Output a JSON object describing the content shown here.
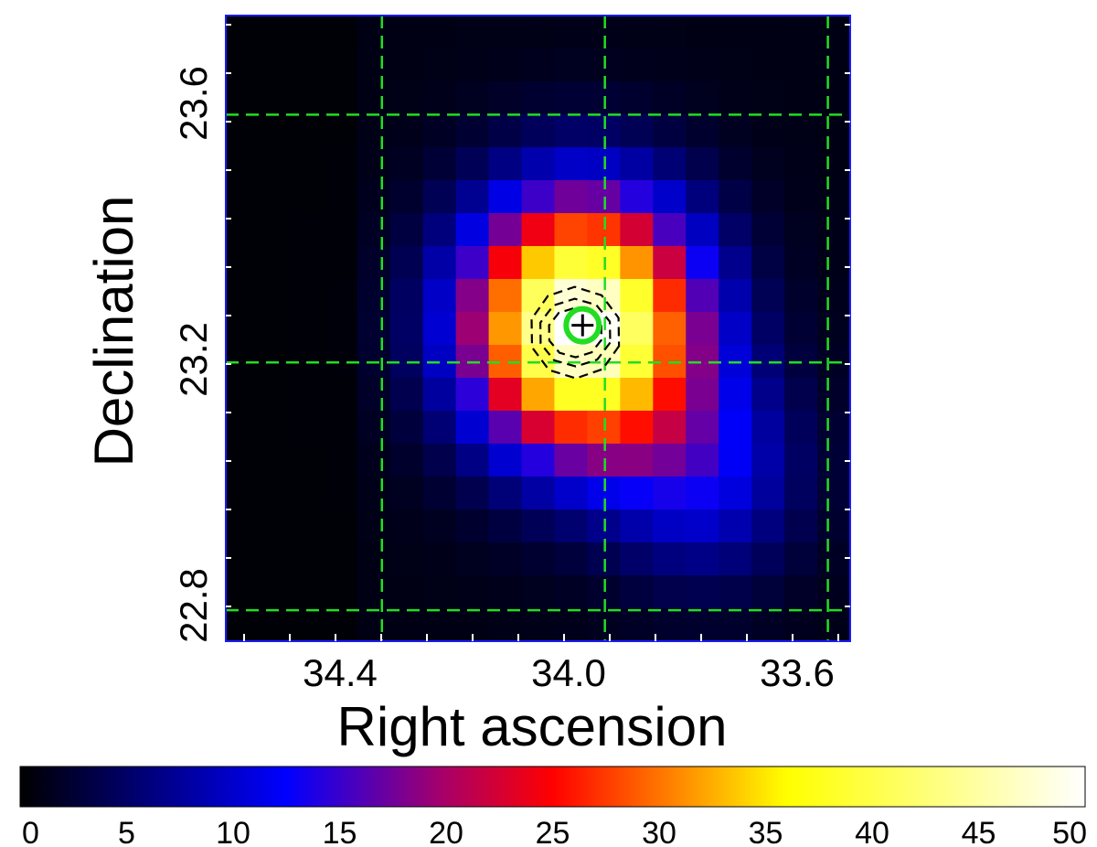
{
  "chart_data": {
    "type": "heatmap",
    "xlabel": "Right ascension",
    "ylabel": "Declination",
    "x_ticks": [
      {
        "value": 34.4,
        "label": "34.4"
      },
      {
        "value": 34.0,
        "label": "34.0"
      },
      {
        "value": 33.6,
        "label": "33.6"
      }
    ],
    "y_ticks": [
      {
        "value": 23.6,
        "label": "23.6"
      },
      {
        "value": 23.2,
        "label": "23.2"
      },
      {
        "value": 22.8,
        "label": "22.8"
      }
    ],
    "xlim": [
      34.68,
      33.56
    ],
    "ylim": [
      22.77,
      23.78
    ],
    "grid": {
      "style": "dashed",
      "color": "#22dd22",
      "ra_lines": [
        34.4,
        34.0,
        33.6
      ],
      "dec_lines": [
        23.62,
        23.22,
        22.82
      ]
    },
    "colorbar": {
      "min": 0,
      "max": 50,
      "ticks": [
        0,
        5,
        10,
        15,
        20,
        25,
        30,
        35,
        40,
        45,
        50
      ],
      "orientation": "horizontal",
      "colormap": "black-blue-red-yellow-white"
    },
    "image_grid": {
      "cols": 19,
      "rows": 19
    },
    "source": {
      "type": "gaussian-blob",
      "peak": 50,
      "center_ra": 34.04,
      "center_dec": 23.28,
      "sigma_deg": 0.14,
      "secondary": {
        "peak": 10,
        "center_ra": 33.82,
        "center_dec": 23.04,
        "sigma_deg": 0.12
      },
      "background": 1
    },
    "marker": {
      "ra": 34.04,
      "dec": 23.28,
      "circle_color": "#22dd22",
      "cross_color": "#000000"
    },
    "contours": {
      "color": "#000000",
      "style": "dashed",
      "count": 3
    }
  }
}
